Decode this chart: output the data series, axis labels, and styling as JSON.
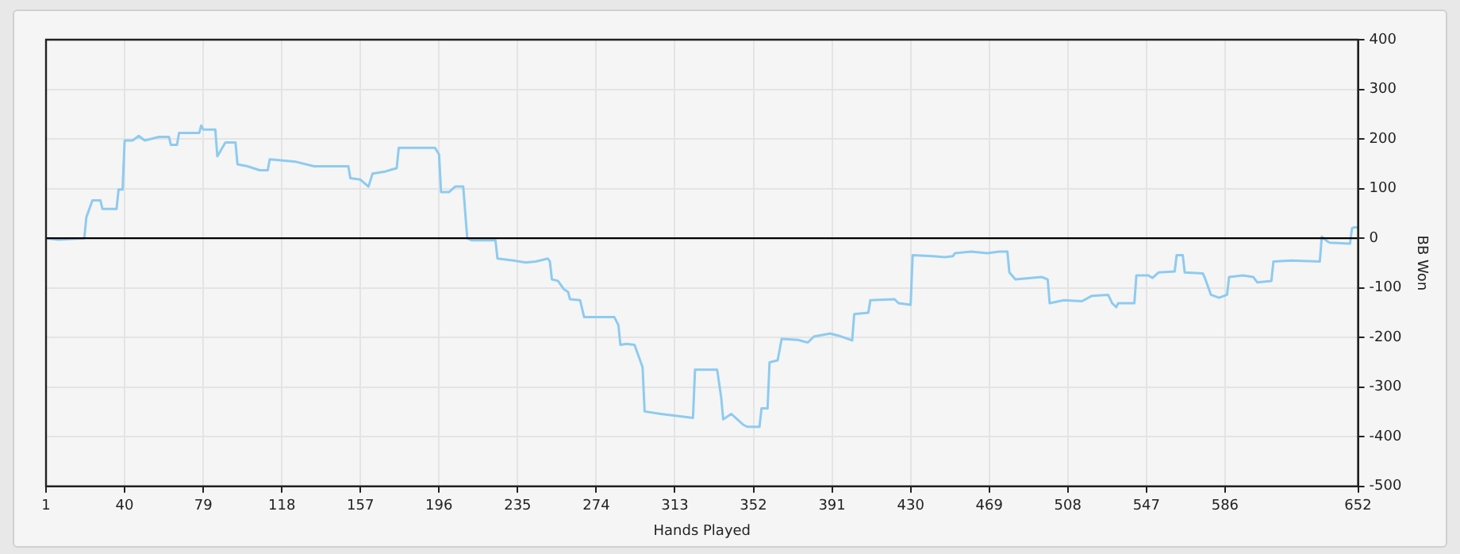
{
  "chart_data": {
    "type": "line",
    "xlabel": "Hands Played",
    "ylabel": "BB Won",
    "x": [
      1,
      7,
      20,
      21,
      24,
      28,
      29,
      36,
      37,
      39,
      40,
      44,
      47,
      50,
      57,
      62,
      63,
      66,
      67,
      77,
      78,
      79,
      85,
      86,
      90,
      95,
      96,
      101,
      107,
      111,
      112,
      125,
      134,
      136,
      151,
      152,
      157,
      161,
      163,
      169,
      173,
      175,
      176,
      194,
      196,
      197,
      201,
      204,
      208,
      210,
      212,
      224,
      225,
      233,
      239,
      244,
      250,
      251,
      252,
      255,
      258,
      260,
      261,
      266,
      268,
      283,
      285,
      286,
      289,
      293,
      294,
      297,
      298,
      306,
      322,
      323,
      334,
      336,
      337,
      341,
      344,
      347,
      349,
      355,
      356,
      359,
      360,
      364,
      366,
      374,
      379,
      382,
      390,
      394,
      401,
      402,
      409,
      410,
      422,
      424,
      430,
      431,
      441,
      447,
      451,
      452,
      460,
      468,
      474,
      478,
      479,
      482,
      495,
      498,
      499,
      506,
      515,
      520,
      528,
      530,
      532,
      533,
      541,
      542,
      548,
      550,
      553,
      561,
      562,
      565,
      566,
      575,
      576,
      579,
      583,
      587,
      588,
      595,
      600,
      602,
      609,
      610,
      619,
      633,
      634,
      637,
      638,
      648,
      649,
      650,
      652
    ],
    "values": [
      0,
      -3,
      0,
      42,
      76,
      76,
      59,
      59,
      98,
      98,
      197,
      197,
      206,
      197,
      204,
      204,
      188,
      188,
      212,
      212,
      227,
      219,
      219,
      165,
      193,
      193,
      149,
      145,
      137,
      137,
      159,
      154,
      145,
      145,
      145,
      121,
      118,
      104,
      130,
      134,
      139,
      141,
      182,
      182,
      169,
      93,
      93,
      104,
      104,
      0,
      -4,
      -4,
      -41,
      -45,
      -49,
      -47,
      -41,
      -47,
      -83,
      -86,
      -103,
      -108,
      -123,
      -125,
      -159,
      -159,
      -175,
      -215,
      -213,
      -215,
      -226,
      -260,
      -349,
      -354,
      -362,
      -265,
      -265,
      -321,
      -365,
      -354,
      -365,
      -376,
      -380,
      -380,
      -343,
      -343,
      -250,
      -246,
      -203,
      -205,
      -210,
      -198,
      -192,
      -196,
      -206,
      -153,
      -150,
      -125,
      -123,
      -131,
      -134,
      -34,
      -36,
      -38,
      -36,
      -30,
      -27,
      -30,
      -27,
      -27,
      -69,
      -83,
      -78,
      -83,
      -131,
      -125,
      -127,
      -116,
      -114,
      -131,
      -139,
      -131,
      -131,
      -75,
      -75,
      -80,
      -69,
      -67,
      -34,
      -34,
      -69,
      -71,
      -80,
      -114,
      -120,
      -114,
      -78,
      -75,
      -78,
      -89,
      -86,
      -47,
      -45,
      -47,
      3,
      -7,
      -9,
      -11,
      20,
      22,
      22
    ],
    "color": "#8ecbef",
    "marker": "none",
    "line_style": "solid",
    "xlim": [
      1,
      652
    ],
    "xticks": [
      1,
      40,
      79,
      118,
      157,
      196,
      235,
      274,
      313,
      352,
      391,
      430,
      469,
      508,
      547,
      586,
      652
    ],
    "ylim": [
      -500,
      400
    ],
    "yticks": [
      -500,
      -400,
      -300,
      -200,
      -100,
      0,
      100,
      200,
      300,
      400
    ],
    "ref_lines": [
      {
        "axis": "y",
        "value": 0,
        "color": "#000000"
      }
    ],
    "grid": true,
    "legend": false
  }
}
